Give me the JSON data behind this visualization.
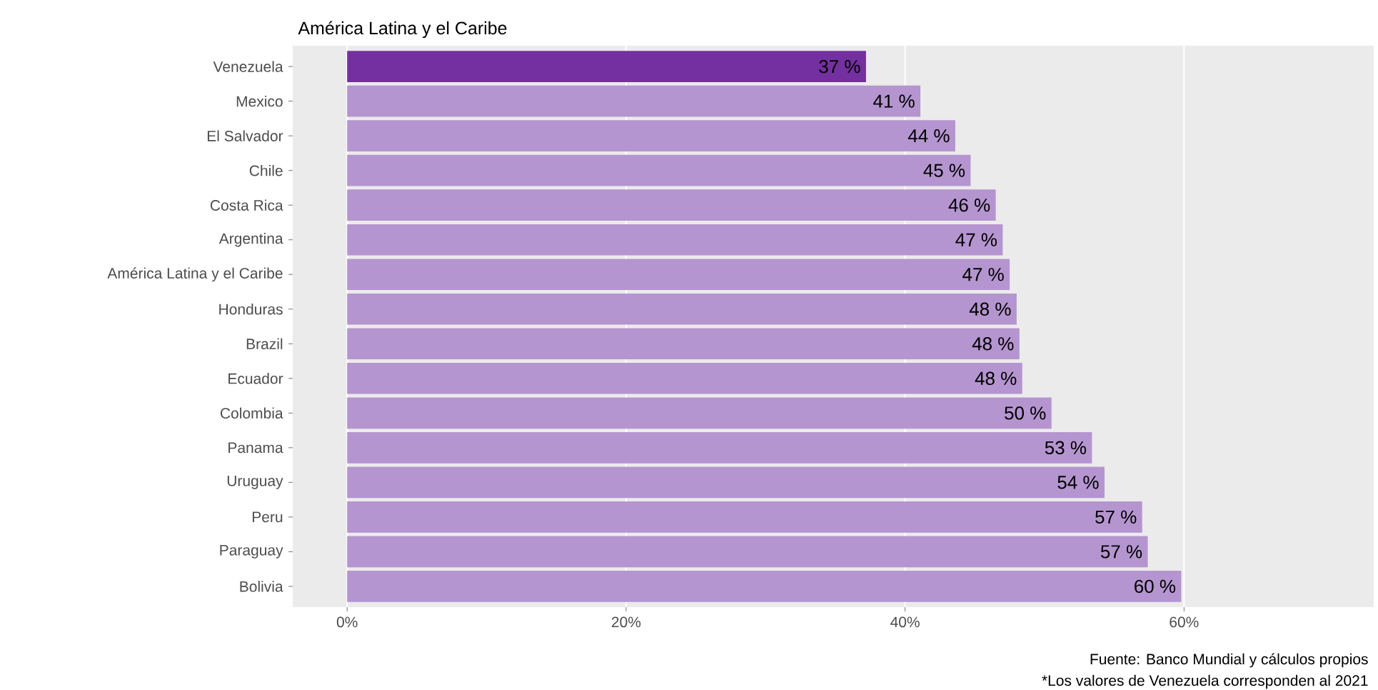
{
  "chart_data": {
    "type": "bar",
    "orientation": "horizontal",
    "title": "América Latina y el Caribe",
    "categories": [
      "Venezuela",
      "Mexico",
      "El Salvador",
      "Chile",
      "Costa Rica",
      "Argentina",
      "América Latina y el Caribe",
      "Honduras",
      "Brazil",
      "Ecuador",
      "Colombia",
      "Panama",
      "Uruguay",
      "Peru",
      "Paraguay",
      "Bolivia"
    ],
    "values": [
      37.2,
      41.1,
      43.6,
      44.7,
      46.5,
      47.0,
      47.5,
      48.0,
      48.2,
      48.4,
      50.5,
      53.4,
      54.3,
      57.0,
      57.4,
      59.8
    ],
    "value_labels": [
      "37 %",
      "41 %",
      "44 %",
      "45 %",
      "46 %",
      "47 %",
      "47 %",
      "48 %",
      "48 %",
      "48 %",
      "50 %",
      "53 %",
      "54 %",
      "57 %",
      "57 %",
      "60 %"
    ],
    "colors": [
      "#7430a0",
      "#b595d0",
      "#b595d0",
      "#b595d0",
      "#b595d0",
      "#b595d0",
      "#b595d0",
      "#b595d0",
      "#b595d0",
      "#b595d0",
      "#b595d0",
      "#b595d0",
      "#b595d0",
      "#b595d0",
      "#b595d0",
      "#b595d0"
    ],
    "xlim": [
      -3.9,
      73.6
    ],
    "xticks": [
      {
        "value": 0,
        "label": "0%"
      },
      {
        "value": 20,
        "label": "20%"
      },
      {
        "value": 40,
        "label": "40%"
      },
      {
        "value": 60,
        "label": "60%"
      }
    ],
    "grid": "x",
    "annotations": [
      "Fuente: Banco Mundial y cálculos propios",
      "*Los valores de Venezuela corresponden al 2021"
    ]
  }
}
